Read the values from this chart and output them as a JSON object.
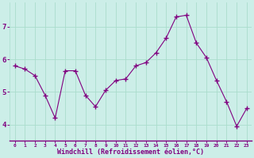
{
  "x": [
    0,
    1,
    2,
    3,
    4,
    5,
    6,
    7,
    8,
    9,
    10,
    11,
    12,
    13,
    14,
    15,
    16,
    17,
    18,
    19,
    20,
    21,
    22,
    23
  ],
  "y": [
    5.8,
    5.7,
    5.5,
    4.9,
    4.2,
    5.65,
    5.65,
    4.9,
    4.55,
    5.05,
    5.35,
    5.4,
    5.8,
    5.9,
    6.2,
    6.65,
    7.3,
    7.35,
    6.5,
    6.05,
    5.35,
    4.7,
    3.95,
    4.5
  ],
  "line_color": "#800080",
  "marker": "+",
  "bg_color": "#cceee8",
  "grid_color": "#aaddcc",
  "xlabel": "Windchill (Refroidissement éolien,°C)",
  "xlabel_color": "#800080",
  "tick_color": "#800080",
  "ylim": [
    3.5,
    7.75
  ],
  "xlim": [
    -0.5,
    23.5
  ],
  "yticks": [
    4,
    5,
    6,
    7
  ],
  "xticks": [
    0,
    1,
    2,
    3,
    4,
    5,
    6,
    7,
    8,
    9,
    10,
    11,
    12,
    13,
    14,
    15,
    16,
    17,
    18,
    19,
    20,
    21,
    22,
    23
  ],
  "figsize": [
    3.2,
    2.0
  ],
  "dpi": 100
}
